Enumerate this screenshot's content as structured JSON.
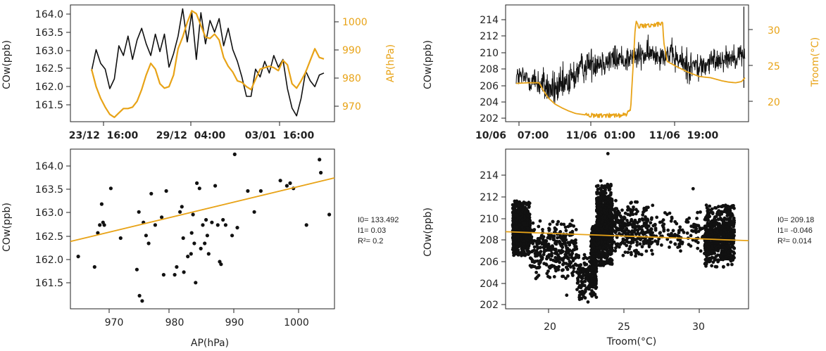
{
  "colors": {
    "black": "#111111",
    "orange": "#e8a317",
    "text": "#222222"
  },
  "chart_data": [
    {
      "id": "p1",
      "type": "line",
      "xlabel": "",
      "ylabel": "COw(ppb)",
      "y2label": "AP(hPa)",
      "ylim": [
        161.15,
        164.15
      ],
      "y2lim": [
        965,
        1005
      ],
      "yticks": [
        "164.0",
        "163.5",
        "163.0",
        "162.5",
        "162.0",
        "161.5"
      ],
      "y2ticks": [
        "1000",
        "990",
        "980",
        "970"
      ],
      "xticks": [
        "23/12  16:00",
        "29/12  04:00",
        "03/01  16:00"
      ],
      "series": [
        {
          "axis": "left",
          "color": "#111111",
          "values": [
            162.45,
            163.0,
            162.65,
            162.5,
            162.0,
            162.25,
            163.1,
            162.85,
            163.35,
            162.75,
            163.25,
            163.55,
            163.15,
            162.85,
            163.4,
            162.95,
            163.4,
            162.55,
            162.9,
            163.35,
            164.05,
            163.2,
            163.95,
            162.75,
            163.95,
            163.15,
            163.75,
            163.45,
            163.8,
            163.1,
            163.55,
            163.0,
            162.7,
            162.3,
            161.8,
            161.8,
            162.5,
            162.3,
            162.7,
            162.4,
            162.85,
            162.55,
            162.75,
            162.0,
            161.5,
            161.3,
            161.75,
            162.45,
            162.2,
            162.05,
            162.35,
            162.4
          ]
        },
        {
          "axis": "right",
          "color": "#e8a317",
          "values": [
            983,
            977,
            973,
            970,
            967.5,
            966.5,
            968,
            969.5,
            969.5,
            970,
            972,
            976,
            981,
            985,
            983,
            978,
            976.5,
            977,
            981,
            990,
            994,
            999,
            1003,
            1002,
            998,
            994,
            993.5,
            995,
            993,
            987,
            984,
            982,
            979,
            978.5,
            977,
            976,
            979.5,
            983,
            983.5,
            984,
            983.5,
            982.5,
            986,
            984.5,
            978,
            976.5,
            979,
            982,
            986,
            990,
            987,
            986.5
          ]
        }
      ]
    },
    {
      "id": "p2",
      "type": "line",
      "xlabel": "",
      "ylabel": "COw(ppb)",
      "y2label": "Troom(°C)",
      "ylim": [
        201.6,
        215.4
      ],
      "y2lim": [
        17.2,
        35.8
      ],
      "yticks": [
        "214",
        "212",
        "210",
        "208",
        "206",
        "204",
        "202"
      ],
      "y2ticks": [
        "30",
        "25",
        "20"
      ],
      "xticks": [
        "10/06",
        "07:00",
        "11/06  01:00",
        "11/06  19:00"
      ],
      "series": [
        {
          "axis": "left",
          "color": "#111111",
          "kind": "noisy-trace",
          "x": [
            0,
            0.03,
            0.06,
            0.09,
            0.12,
            0.15,
            0.19,
            0.23,
            0.27,
            0.31,
            0.35,
            0.39,
            0.43,
            0.47,
            0.51,
            0.55,
            0.59,
            0.63,
            0.67,
            0.71,
            0.74,
            0.77,
            0.8,
            0.83,
            0.86,
            0.89,
            0.92,
            0.95,
            0.98,
            1
          ],
          "center": [
            207,
            206.8,
            206.6,
            206.3,
            205.9,
            205.4,
            205.4,
            206.2,
            207.6,
            208.4,
            208.7,
            208.8,
            209.0,
            209.0,
            209.2,
            209.4,
            209.6,
            209.6,
            209.6,
            208.8,
            208.4,
            208.2,
            208.0,
            208.3,
            208.8,
            209.0,
            209.2,
            209.3,
            209.5,
            209.6
          ],
          "spread": [
            1.1,
            1.2,
            1.3,
            1.5,
            1.6,
            1.7,
            1.8,
            1.8,
            1.6,
            1.5,
            1.4,
            1.4,
            1.4,
            1.3,
            1.3,
            1.3,
            1.2,
            1.2,
            1.2,
            1.5,
            1.6,
            1.6,
            1.5,
            1.3,
            1.2,
            1.1,
            1.1,
            1.1,
            1.1,
            1.1
          ],
          "spike": {
            "x": 0.995,
            "top": 215.2,
            "bottom": 205.6
          }
        },
        {
          "axis": "right",
          "color": "#e8a317",
          "x": [
            0,
            0.05,
            0.1,
            0.11,
            0.115,
            0.14,
            0.17,
            0.2,
            0.23,
            0.26,
            0.3,
            0.35,
            0.4,
            0.45,
            0.48,
            0.5,
            0.52,
            0.525,
            0.535,
            0.56,
            0.6,
            0.63,
            0.64,
            0.645,
            0.66,
            0.7,
            0.75,
            0.8,
            0.85,
            0.9,
            0.93,
            0.96,
            0.985,
            1
          ],
          "values": [
            23.3,
            23.4,
            23.4,
            22.8,
            22.4,
            21.0,
            20.0,
            19.4,
            18.9,
            18.5,
            18.3,
            18.2,
            18.2,
            18.2,
            18.3,
            19.0,
            32.0,
            33.2,
            32.4,
            32.5,
            32.6,
            32.8,
            33.0,
            29.8,
            26.8,
            26.0,
            25.1,
            24.4,
            24.2,
            23.7,
            23.5,
            23.4,
            23.6,
            24.2
          ]
        }
      ]
    },
    {
      "id": "p3",
      "type": "scatter",
      "xlabel": "AP(hPa)",
      "ylabel": "COw(ppb)",
      "xlim": [
        964.8,
        1005.3
      ],
      "ylim": [
        161.15,
        164.2
      ],
      "xticks": [
        970,
        980,
        990,
        1000
      ],
      "yticks": [
        "164.0",
        "163.5",
        "163.0",
        "162.5",
        "162.0",
        "161.5"
      ],
      "fit": {
        "intercept": 133.492,
        "slope": 0.03,
        "color": "#e8a317"
      },
      "stats": [
        "I0= 133.492",
        "I1= 0.03",
        "R²= 0.2"
      ],
      "points": [
        [
          966.0,
          162.15
        ],
        [
          968.5,
          161.95
        ],
        [
          969.0,
          162.6
        ],
        [
          969.3,
          162.75
        ],
        [
          969.6,
          163.15
        ],
        [
          969.8,
          162.8
        ],
        [
          970.0,
          162.75
        ],
        [
          971.0,
          163.45
        ],
        [
          972.5,
          162.5
        ],
        [
          975.0,
          161.9
        ],
        [
          975.3,
          163.0
        ],
        [
          975.4,
          161.4
        ],
        [
          975.8,
          161.3
        ],
        [
          976.0,
          162.8
        ],
        [
          976.4,
          162.55
        ],
        [
          976.8,
          162.4
        ],
        [
          977.2,
          163.35
        ],
        [
          977.8,
          162.75
        ],
        [
          978.8,
          162.9
        ],
        [
          979.1,
          161.8
        ],
        [
          979.5,
          163.4
        ],
        [
          980.8,
          161.8
        ],
        [
          981.1,
          161.95
        ],
        [
          981.6,
          163.0
        ],
        [
          981.9,
          163.1
        ],
        [
          982.1,
          162.5
        ],
        [
          982.2,
          161.85
        ],
        [
          982.8,
          162.15
        ],
        [
          983.3,
          162.2
        ],
        [
          983.4,
          162.6
        ],
        [
          983.6,
          162.95
        ],
        [
          983.8,
          162.4
        ],
        [
          984.0,
          161.65
        ],
        [
          984.2,
          163.55
        ],
        [
          984.6,
          163.45
        ],
        [
          984.8,
          162.3
        ],
        [
          985.1,
          162.75
        ],
        [
          985.4,
          162.4
        ],
        [
          985.6,
          162.85
        ],
        [
          985.8,
          162.55
        ],
        [
          986.0,
          162.2
        ],
        [
          986.5,
          162.8
        ],
        [
          987.0,
          163.5
        ],
        [
          987.4,
          162.75
        ],
        [
          987.7,
          162.05
        ],
        [
          987.9,
          162.0
        ],
        [
          988.2,
          162.85
        ],
        [
          988.6,
          162.75
        ],
        [
          989.6,
          162.55
        ],
        [
          990.0,
          164.1
        ],
        [
          990.4,
          162.7
        ],
        [
          992.0,
          163.4
        ],
        [
          993.0,
          163.0
        ],
        [
          994.0,
          163.4
        ],
        [
          997.0,
          163.6
        ],
        [
          998.0,
          163.5
        ],
        [
          998.5,
          163.55
        ],
        [
          999.0,
          163.45
        ],
        [
          1001.0,
          162.75
        ],
        [
          1003.0,
          164.0
        ],
        [
          1003.2,
          163.75
        ],
        [
          1004.5,
          162.95
        ]
      ]
    },
    {
      "id": "p4",
      "type": "scatter",
      "xlabel": "Troom(°C)",
      "ylabel": "COw(ppb)",
      "xlim": [
        16.8,
        33.9
      ],
      "ylim": [
        201.6,
        215.7
      ],
      "xticks": [
        20,
        25,
        30
      ],
      "yticks": [
        "214",
        "212",
        "210",
        "208",
        "206",
        "204",
        "202"
      ],
      "fit": {
        "intercept": 209.18,
        "slope": -0.046,
        "color": "#e8a317"
      },
      "stats": [
        "I0= 209.18",
        "I1= -0.046",
        "R²= 0.014"
      ],
      "clusters": [
        {
          "x": [
            17.3,
            18.5
          ],
          "y": [
            206.3,
            211.2
          ],
          "n": 850
        },
        {
          "x": [
            18.5,
            21.8
          ],
          "y": [
            204.2,
            209.4
          ],
          "n": 320
        },
        {
          "x": [
            21.8,
            22.8
          ],
          "y": [
            202.4,
            206.4
          ],
          "n": 110
        },
        {
          "x": [
            22.8,
            23.2
          ],
          "y": [
            202.6,
            209.0
          ],
          "n": 280
        },
        {
          "x": [
            23.2,
            24.3
          ],
          "y": [
            205.4,
            212.6
          ],
          "n": 900
        },
        {
          "x": [
            24.3,
            27.2
          ],
          "y": [
            206.2,
            211.2
          ],
          "n": 280
        },
        {
          "x": [
            27.2,
            30.8
          ],
          "y": [
            206.6,
            210.2
          ],
          "n": 110
        },
        {
          "x": [
            30.8,
            32.9
          ],
          "y": [
            205.2,
            210.8
          ],
          "n": 650
        }
      ],
      "outliers": [
        [
          24.0,
          215.3
        ],
        [
          30.0,
          212.2
        ],
        [
          23.5,
          212.9
        ],
        [
          21.1,
          202.8
        ],
        [
          22.6,
          202.2
        ]
      ]
    }
  ]
}
